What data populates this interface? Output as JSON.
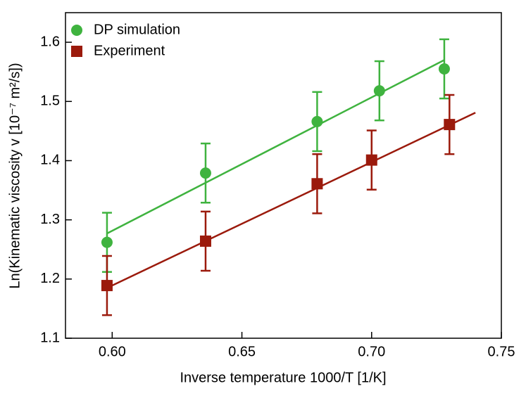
{
  "chart_data": {
    "type": "scatter",
    "xlabel": "Inverse temperature 1000/T [1/K]",
    "ylabel": "Ln(Kinematic viscosity v [10⁻⁷ m²/s])",
    "xlim": [
      0.582,
      0.75
    ],
    "xticks": [
      {
        "value": 0.6,
        "label": "0.60"
      },
      0.65,
      {
        "value": 0.7,
        "label": "0.70"
      },
      0.75
    ],
    "ylim": [
      1.1,
      1.65
    ],
    "yticks": [
      1.1,
      1.2,
      1.3,
      1.4,
      1.5,
      1.6
    ],
    "legend": "upper left",
    "series": [
      {
        "name": "DP simulation",
        "color": "#3fb33f",
        "marker": "circle",
        "x": [
          0.598,
          0.636,
          0.679,
          0.703,
          0.728
        ],
        "values": [
          1.262,
          1.379,
          1.466,
          1.518,
          1.555
        ],
        "errors": [
          0.05,
          0.05,
          0.05,
          0.05,
          0.05
        ],
        "fit_x": [
          0.598,
          0.728
        ],
        "fit_y": [
          1.277,
          1.57
        ]
      },
      {
        "name": "Experiment",
        "color": "#9b1a0c",
        "marker": "square",
        "x": [
          0.598,
          0.636,
          0.679,
          0.7,
          0.73
        ],
        "values": [
          1.189,
          1.264,
          1.361,
          1.401,
          1.461
        ],
        "errors": [
          0.05,
          0.05,
          0.05,
          0.05,
          0.05
        ],
        "fit_x": [
          0.598,
          0.74
        ],
        "fit_y": [
          1.185,
          1.481
        ]
      }
    ]
  }
}
